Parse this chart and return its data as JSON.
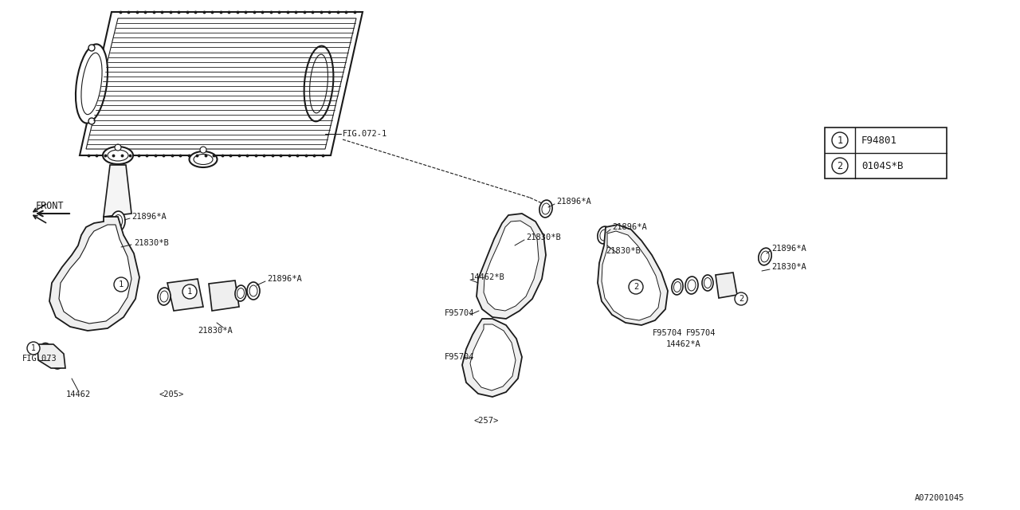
{
  "background_color": "#ffffff",
  "line_color": "#1a1a1a",
  "fig_id": "A072001045",
  "legend_items": [
    {
      "num": "1",
      "code": "F94801"
    },
    {
      "num": "2",
      "code": "0104S*B"
    }
  ],
  "labels": {
    "fig072": "FIG.072-1",
    "fig073": "FIG.073",
    "front": "FRONT",
    "part_14462": "14462",
    "part_205": "<205>",
    "part_21896A_1": "21896*A",
    "part_21830B_1": "21830*B",
    "part_21896A_2": "21896*A",
    "part_21830A_1": "21830*A",
    "part_21896A_3": "21896*A",
    "part_21830B_2": "21830*B",
    "part_F95704_1": "F95704",
    "part_14462B": "14462*B",
    "part_257": "<257>",
    "part_F95704_2": "F95704",
    "part_F95704_3": "F95704",
    "part_F95704_4": "F95704",
    "part_14462A": "14462*A",
    "part_21896A_4": "21896*A",
    "part_21830A_2": "21830*A"
  }
}
